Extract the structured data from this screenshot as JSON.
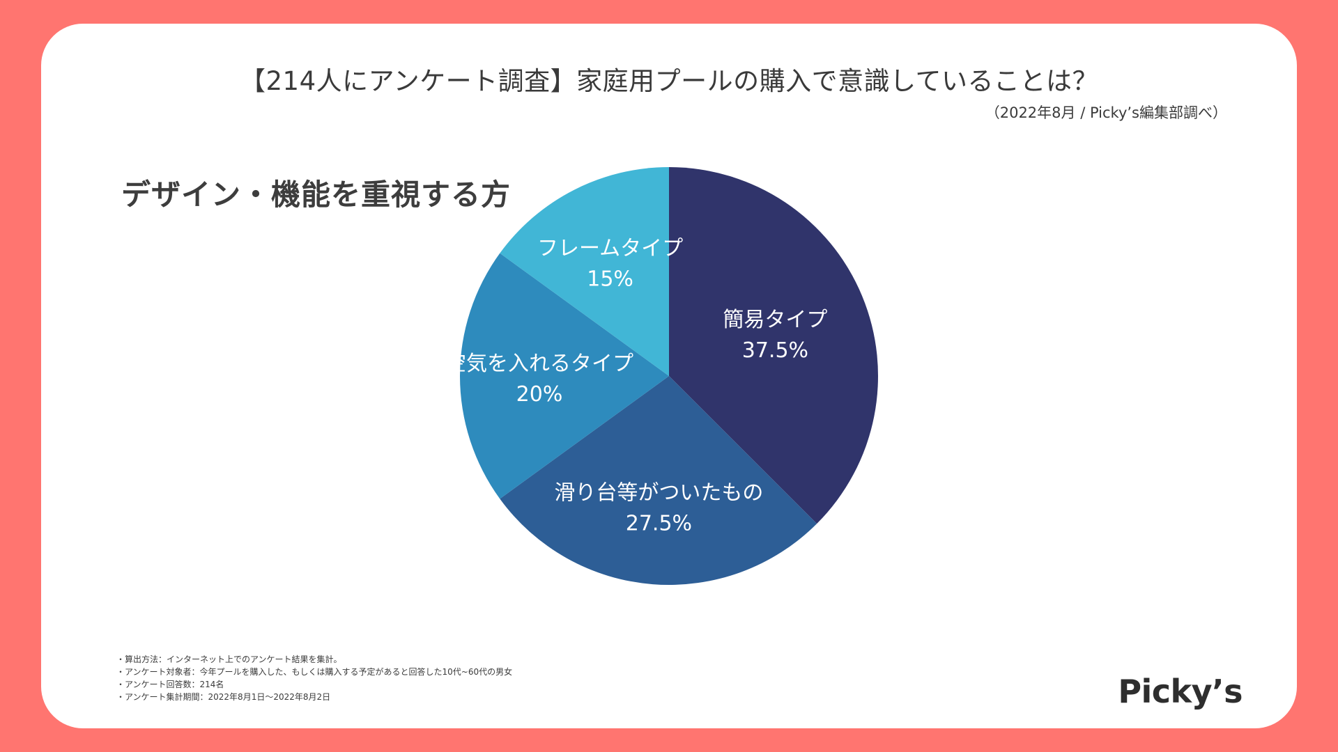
{
  "header": {
    "title": "【214人にアンケート調査】家庭用プールの購入で意識していることは？",
    "source": "（2022年8月 / Picky’s編集部調べ）"
  },
  "chart_data": {
    "type": "pie",
    "title": "デザイン・機能を重視する方",
    "slices": [
      {
        "label": "簡易タイプ",
        "value": 37.5,
        "value_label": "37.5%",
        "color": "#30346b"
      },
      {
        "label": "滑り台等がついたもの",
        "value": 27.5,
        "value_label": "27.5%",
        "color": "#2d5e96"
      },
      {
        "label": "空気を入れるタイプ",
        "value": 20,
        "value_label": "20%",
        "color": "#2e8bbd"
      },
      {
        "label": "フレームタイプ",
        "value": 15,
        "value_label": "15%",
        "color": "#41b6d6"
      }
    ],
    "start": "12 o'clock",
    "direction": "clockwise"
  },
  "notes": [
    "・算出方法：インターネット上でのアンケート結果を集計。",
    "・アンケート対象者：今年プールを購入した、もしくは購入する予定があると回答した10代~60代の男女",
    "・アンケート回答数：214名",
    "・アンケート集計期間：2022年8月1日〜2022年8月2日"
  ],
  "brand": {
    "logo_text": "Picky’s",
    "background_color": "#ff7570"
  }
}
